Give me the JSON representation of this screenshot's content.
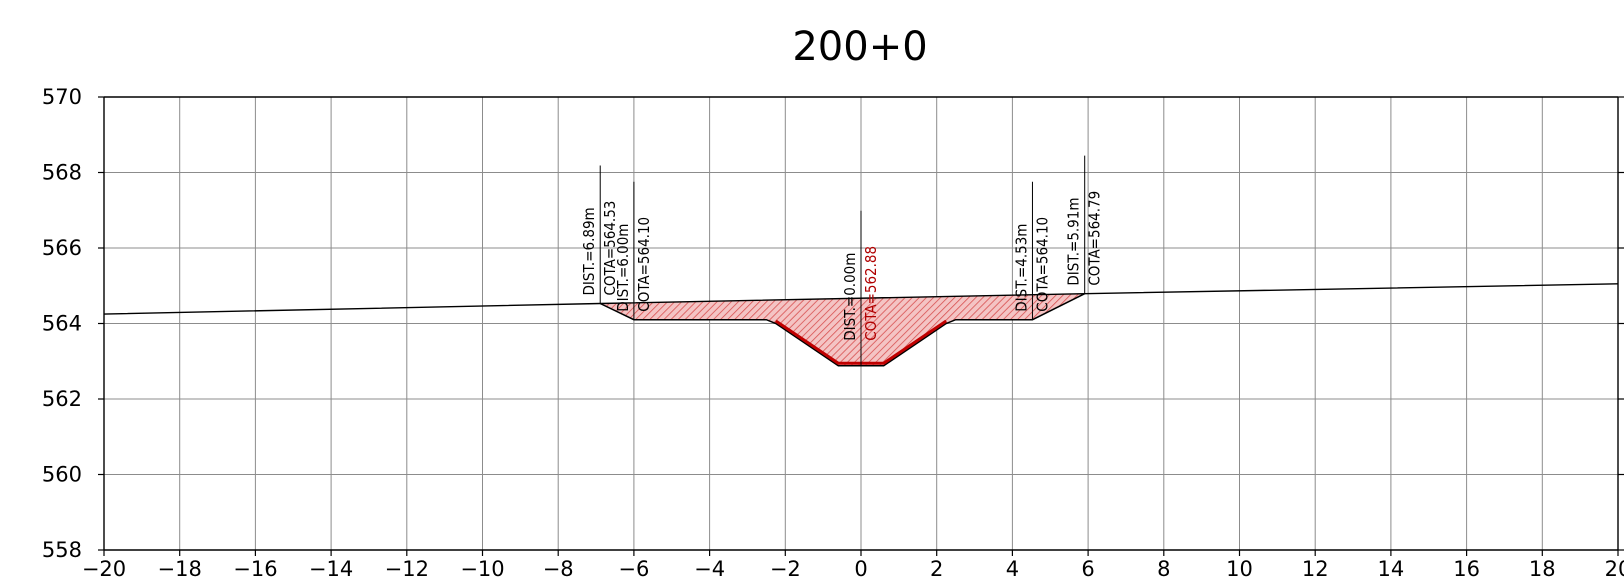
{
  "title": "200+0",
  "colors": {
    "fill": "#f2b3b3",
    "hatch": "#d85050",
    "outline": "#000000",
    "bottom_line": "#c00000",
    "grid": "#8c8c8c"
  },
  "axes": {
    "x_range": [
      -20,
      20
    ],
    "y_range": [
      558,
      570
    ],
    "x_ticks": [
      "−20",
      "−18",
      "−16",
      "−14",
      "−12",
      "−10",
      "−8",
      "−6",
      "−4",
      "−2",
      "0",
      "2",
      "4",
      "6",
      "8",
      "10",
      "12",
      "14",
      "16",
      "18",
      "20"
    ],
    "y_ticks": [
      "570",
      "568",
      "566",
      "564",
      "562",
      "560",
      "558"
    ],
    "grid": true
  },
  "chart_data": {
    "type": "cross-section",
    "title": "200+0",
    "x_range": [
      -20,
      20
    ],
    "y_range": [
      558,
      570
    ],
    "grid": true,
    "terrain": [
      [
        -20,
        564.25
      ],
      [
        -6.89,
        564.53
      ],
      [
        5.91,
        564.79
      ],
      [
        20,
        565.05
      ]
    ],
    "cut_section": [
      [
        -6.89,
        564.53
      ],
      [
        -6.0,
        564.1
      ],
      [
        -2.5,
        564.1
      ],
      [
        -2.25,
        564.0
      ],
      [
        -0.6,
        562.88
      ],
      [
        0.6,
        562.88
      ],
      [
        2.25,
        564.0
      ],
      [
        2.5,
        564.1
      ],
      [
        4.53,
        564.1
      ],
      [
        5.91,
        564.79
      ]
    ],
    "annotations": [
      {
        "x": -6.89,
        "dist": "DIST.=6.89m",
        "cota": "COTA=564.53"
      },
      {
        "x": -6.0,
        "dist": "DIST.=6.00m",
        "cota": "COTA=564.10"
      },
      {
        "x": 0.0,
        "dist": "DIST.=0.00m",
        "cota": "COTA=562.88"
      },
      {
        "x": 4.53,
        "dist": "DIST.=4.53m",
        "cota": "COTA=564.10"
      },
      {
        "x": 5.91,
        "dist": "DIST.=5.91m",
        "cota": "COTA=564.79"
      }
    ]
  }
}
